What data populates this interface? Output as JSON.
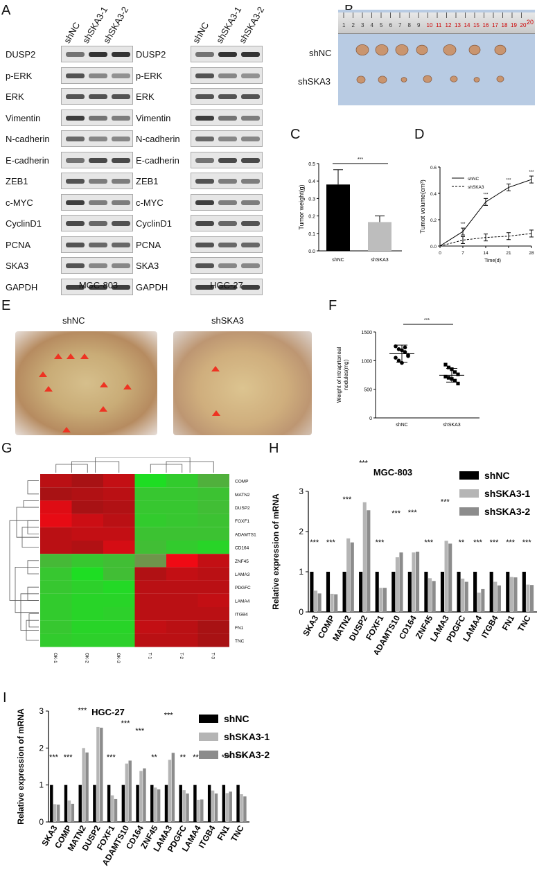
{
  "panels": {
    "A": "A",
    "B": "B",
    "C": "C",
    "D": "D",
    "E": "E",
    "F": "F",
    "G": "G",
    "H": "H",
    "I": "I"
  },
  "panelA": {
    "columns": [
      "shNC",
      "shSKA3-1",
      "shSKA3-2"
    ],
    "proteins": [
      "DUSP2",
      "p-ERK",
      "ERK",
      "Vimentin",
      "N-cadherin",
      "E-cadherin",
      "ZEB1",
      "c-MYC",
      "CyclinD1",
      "PCNA",
      "SKA3",
      "GAPDH"
    ],
    "left_cell": "MGC-803",
    "right_cell": "HGC-27"
  },
  "panelB": {
    "row1": "shNC",
    "row2": "shSKA3",
    "ruler_max": "20"
  },
  "panelE": {
    "left": "shNC",
    "right": "shSKA3"
  },
  "chart_data": [
    {
      "id": "C",
      "type": "bar",
      "categories": [
        "shNC",
        "shSKA3"
      ],
      "values": [
        0.38,
        0.165
      ],
      "errors": [
        0.085,
        0.035
      ],
      "ylabel": "Tumor weight(g)",
      "ylim": [
        0,
        0.5
      ],
      "yticks": [
        "0.0",
        "0.1",
        "0.2",
        "0.3",
        "0.4",
        "0.5"
      ],
      "significance": "***",
      "colors": [
        "#000000",
        "#bdbdbd"
      ]
    },
    {
      "id": "D",
      "type": "line",
      "x": [
        0,
        7,
        14,
        21,
        28
      ],
      "xlabel": "Time(d)",
      "ylabel": "Tumot volume(cm³)",
      "ylim": [
        0,
        0.6
      ],
      "yticks": [
        "0.0",
        "0.2",
        "0.4",
        "0.6"
      ],
      "series": [
        {
          "name": "shNC",
          "values": [
            0,
            0.11,
            0.335,
            0.445,
            0.505
          ],
          "style": "solid"
        },
        {
          "name": "shSKA3",
          "values": [
            0,
            0.045,
            0.065,
            0.075,
            0.095
          ],
          "style": "dashed"
        }
      ],
      "stars": [
        "***",
        "***",
        "***",
        "***"
      ]
    },
    {
      "id": "F",
      "type": "scatter",
      "categories": [
        "shNC",
        "shSKA3"
      ],
      "ylabel": "Weight of intraprtoneal nodules(mg)",
      "ylim": [
        0,
        1500
      ],
      "yticks": [
        "0",
        "500",
        "1000",
        "1500"
      ],
      "points": [
        [
          1250,
          1200,
          1180,
          1150,
          1100,
          1050,
          1000,
          960,
          1230,
          1080
        ],
        [
          930,
          880,
          850,
          800,
          760,
          720,
          700,
          680,
          650,
          600
        ]
      ],
      "means": [
        1120,
        745
      ],
      "sd": [
        150,
        120
      ],
      "significance": "***"
    },
    {
      "id": "H",
      "type": "bar",
      "title": "MGC-803",
      "ylabel": "Relative expression of mRNA",
      "ylim": [
        0,
        3
      ],
      "yticks": [
        "0",
        "1",
        "2",
        "3"
      ],
      "categories": [
        "SKA3",
        "COMP",
        "MATN2",
        "DUSP2",
        "FOXF1",
        "ADAMTS10",
        "CD164",
        "ZNF45",
        "LAMA3",
        "PDGFC",
        "LAMA4",
        "ITGB4",
        "FN1",
        "TNC"
      ],
      "series": [
        {
          "name": "shNC",
          "values": [
            1,
            1,
            1,
            1,
            1,
            1,
            1,
            1,
            1,
            1,
            1,
            1,
            1,
            1
          ],
          "color": "#000000"
        },
        {
          "name": "shSKA3-1",
          "values": [
            0.53,
            0.45,
            1.83,
            2.73,
            0.6,
            1.36,
            1.48,
            0.84,
            1.77,
            0.83,
            0.48,
            0.75,
            0.87,
            0.68
          ],
          "color": "#b5b5b5"
        },
        {
          "name": "shSKA3-2",
          "values": [
            0.46,
            0.44,
            1.73,
            2.53,
            0.6,
            1.48,
            1.5,
            0.77,
            1.7,
            0.75,
            0.57,
            0.66,
            0.86,
            0.67
          ],
          "color": "#8c8c8c"
        }
      ],
      "stars": [
        "***",
        "***",
        "***",
        "***",
        "***",
        "***",
        "***",
        "***",
        "***",
        "**",
        "***",
        "***",
        "***",
        "***"
      ]
    },
    {
      "id": "I",
      "type": "bar",
      "title": "HGC-27",
      "ylabel": "Relative expression of mRNA",
      "ylim": [
        0,
        3
      ],
      "yticks": [
        "0",
        "1",
        "2",
        "3"
      ],
      "categories": [
        "SKA3",
        "COMP",
        "MATN2",
        "DUSP2",
        "FOXF1",
        "ADAMTS10",
        "CD164",
        "ZNF45",
        "LAMA3",
        "PDGFC",
        "LAMA4",
        "ITGB4",
        "FN1",
        "TNC"
      ],
      "series": [
        {
          "name": "shNC",
          "values": [
            1,
            1,
            1,
            1,
            1,
            1,
            1,
            1,
            1,
            1,
            1,
            1,
            1,
            1
          ],
          "color": "#000000"
        },
        {
          "name": "shSKA3-1",
          "values": [
            0.48,
            0.58,
            2.0,
            2.57,
            0.72,
            1.58,
            1.38,
            0.93,
            1.68,
            0.86,
            0.6,
            0.85,
            0.78,
            0.75
          ],
          "color": "#b5b5b5"
        },
        {
          "name": "shSKA3-2",
          "values": [
            0.47,
            0.49,
            1.88,
            2.55,
            0.62,
            1.66,
            1.45,
            0.88,
            1.87,
            0.77,
            0.61,
            0.77,
            0.82,
            0.69
          ],
          "color": "#8c8c8c"
        }
      ],
      "stars": [
        "***",
        "***",
        "***",
        "***",
        "***",
        "***",
        "***",
        "**",
        "***",
        "**",
        "***",
        "***",
        "***",
        "***"
      ]
    },
    {
      "id": "G",
      "type": "heatmap",
      "rows": [
        "COMP",
        "MATN2",
        "DUSP2",
        "FOXF1",
        "ADAMTS10",
        "CD164",
        "ZNF45",
        "LAMA3",
        "PDGFC",
        "LAMA4",
        "ITGB4",
        "FN1",
        "TNC"
      ],
      "columns": [
        "OK-1",
        "OK-2",
        "OK-3",
        "T-1",
        "T-2",
        "T-3"
      ],
      "values": [
        [
          0.7,
          0.6,
          0.75,
          -0.9,
          -0.7,
          -0.4
        ],
        [
          0.6,
          0.65,
          0.7,
          -0.65,
          -0.65,
          -0.6
        ],
        [
          0.9,
          0.6,
          0.65,
          -0.65,
          -0.65,
          -0.55
        ],
        [
          0.95,
          0.8,
          0.7,
          -0.7,
          -0.65,
          -0.6
        ],
        [
          0.7,
          0.75,
          0.75,
          -0.6,
          -0.6,
          -0.6
        ],
        [
          0.7,
          0.65,
          0.85,
          -0.55,
          -0.7,
          -0.8
        ],
        [
          -0.5,
          -0.65,
          -0.55,
          -0.1,
          1.0,
          0.75
        ],
        [
          -0.65,
          -0.9,
          -0.55,
          0.65,
          0.75,
          0.7
        ],
        [
          -0.65,
          -0.75,
          -0.85,
          0.7,
          0.7,
          0.7
        ],
        [
          -0.7,
          -0.8,
          -0.8,
          0.7,
          0.7,
          0.75
        ],
        [
          -0.7,
          -0.8,
          -0.75,
          0.7,
          0.7,
          0.7
        ],
        [
          -0.65,
          -0.8,
          -0.8,
          0.75,
          0.7,
          0.6
        ],
        [
          -0.7,
          -0.75,
          -0.75,
          0.7,
          0.7,
          0.6
        ]
      ]
    }
  ]
}
